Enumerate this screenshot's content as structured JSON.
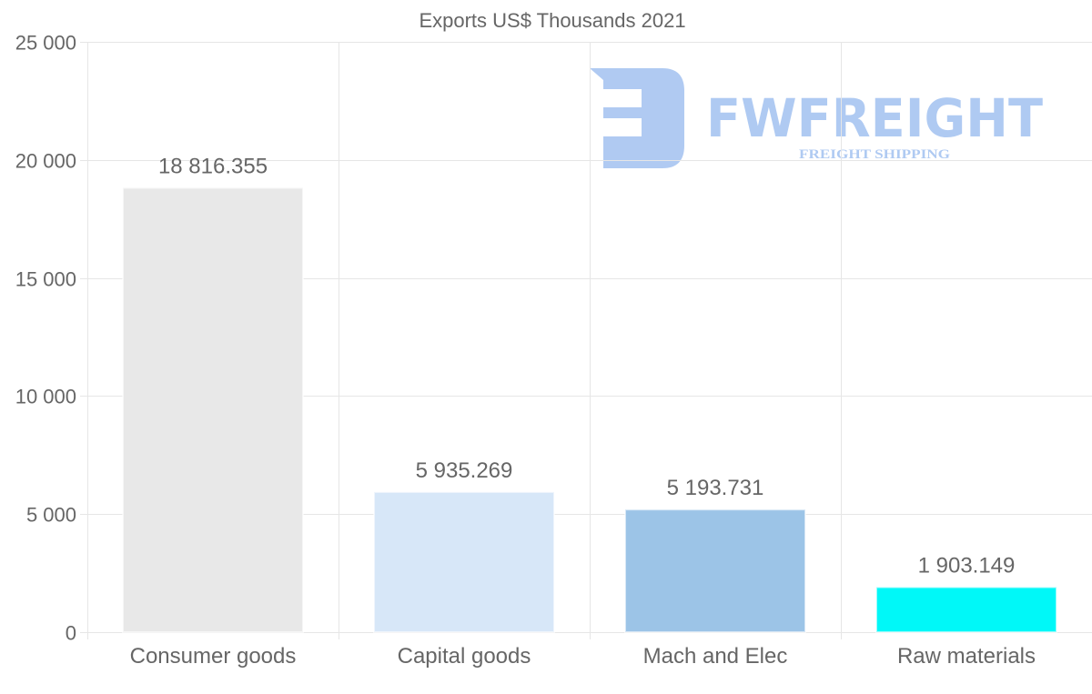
{
  "chart_data": {
    "type": "bar",
    "title": "Exports US$ Thousands 2021",
    "categories": [
      "Consumer goods",
      "Capital goods",
      "Mach and Elec",
      "Raw materials"
    ],
    "values": [
      18816.355,
      5935.269,
      5193.731,
      1903.149
    ],
    "data_labels": [
      "18 816.355",
      "5 935.269",
      "5 193.731",
      "1 903.149"
    ],
    "colors": [
      "#e8e8e8",
      "#d7e7f8",
      "#9cc4e7",
      "#00f8f8"
    ],
    "xlabel": "",
    "ylabel": "",
    "ylim": [
      0,
      25000
    ],
    "yticks": [
      0,
      5000,
      10000,
      15000,
      20000,
      25000
    ],
    "ytick_labels": [
      "0",
      "5 000",
      "10 000",
      "15 000",
      "20 000",
      "25 000"
    ],
    "grid": true,
    "legend": "none"
  },
  "watermark": {
    "brand": "FWFREIGHT",
    "tagline": "FREIGHT SHIPPING"
  }
}
